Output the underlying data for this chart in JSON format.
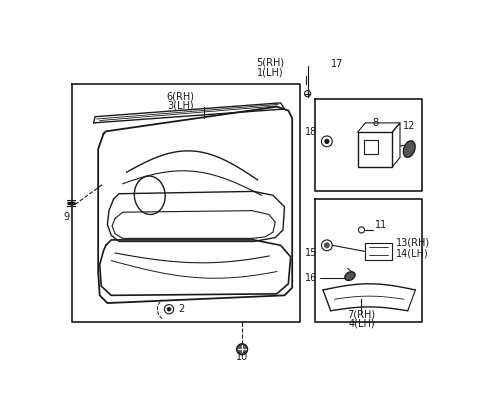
{
  "background_color": "#ffffff",
  "line_color": "#1a1a1a",
  "gray_color": "#555555",
  "labels": {
    "5RH": "5(RH)",
    "1LH": "1(LH)",
    "17": "17",
    "6RH": "6(RH)",
    "3LH": "3(LH)",
    "9": "9",
    "2": "2",
    "10": "10",
    "7RH": "7(RH)",
    "4LH": "4(LH)",
    "18": "18",
    "8": "8",
    "12": "12",
    "11": "11",
    "13RH": "13(RH)",
    "14LH": "14(LH)",
    "15": "15",
    "16": "16"
  }
}
